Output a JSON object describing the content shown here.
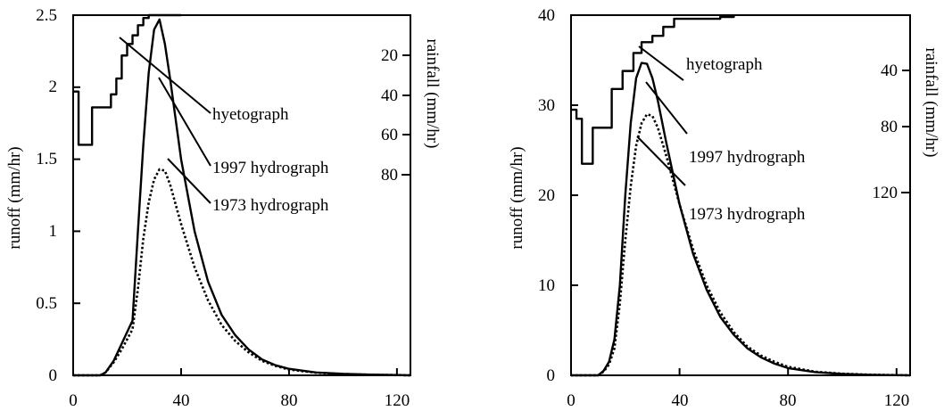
{
  "chart_data": [
    {
      "type": "line",
      "xlim": [
        0,
        125
      ],
      "ylim": [
        0,
        2.5
      ],
      "x_ticks": [
        "0",
        "40",
        "80",
        "120"
      ],
      "y_ticks": [
        "0",
        "0.5",
        "1",
        "1.5",
        "2",
        "2.5"
      ],
      "ylabel": "runoff (mm/hr)",
      "y2label": "rainfall (mm/hr)",
      "y2_ticks": [
        "20",
        "40",
        "60",
        "80"
      ],
      "y2_direction": "inverted, from top",
      "series": [
        {
          "name": "1997 hydrograph",
          "style": "solid",
          "x": [
            0,
            5,
            10,
            12,
            15,
            18,
            20,
            22,
            24,
            26,
            28,
            30,
            32,
            34,
            36,
            40,
            45,
            50,
            55,
            60,
            65,
            70,
            75,
            80,
            90,
            100,
            110,
            120,
            125
          ],
          "y": [
            0,
            0,
            0,
            0.02,
            0.1,
            0.22,
            0.3,
            0.38,
            1.0,
            1.6,
            2.1,
            2.4,
            2.47,
            2.3,
            2.05,
            1.5,
            1.0,
            0.65,
            0.42,
            0.28,
            0.18,
            0.11,
            0.07,
            0.045,
            0.02,
            0.01,
            0.005,
            0.002,
            0
          ]
        },
        {
          "name": "1973 hydrograph",
          "style": "dotted",
          "x": [
            0,
            5,
            10,
            12,
            15,
            18,
            20,
            22,
            24,
            26,
            28,
            30,
            32,
            34,
            36,
            40,
            45,
            50,
            55,
            60,
            65,
            70,
            75,
            80,
            90,
            100,
            110,
            120,
            125
          ],
          "y": [
            0,
            0,
            0,
            0.02,
            0.09,
            0.18,
            0.25,
            0.32,
            0.6,
            0.95,
            1.2,
            1.36,
            1.43,
            1.42,
            1.32,
            1.05,
            0.75,
            0.52,
            0.35,
            0.24,
            0.16,
            0.1,
            0.065,
            0.04,
            0.018,
            0.009,
            0.004,
            0.002,
            0
          ]
        },
        {
          "name": "hyetograph",
          "style": "step",
          "x": [
            0,
            2,
            5,
            7,
            9,
            11,
            14,
            16,
            18,
            20,
            22,
            24,
            26,
            28,
            31,
            34,
            37,
            40
          ],
          "y": [
            1.97,
            1.6,
            1.6,
            1.86,
            1.86,
            1.86,
            1.95,
            2.06,
            2.22,
            2.3,
            2.36,
            2.43,
            2.48,
            2.5,
            2.5,
            2.5,
            2.5,
            2.5
          ]
        }
      ],
      "annotations": [
        "hyetograph",
        "1997 hydrograph",
        "1973 hydrograph"
      ]
    },
    {
      "type": "line",
      "xlim": [
        0,
        125
      ],
      "ylim": [
        0,
        40
      ],
      "x_ticks": [
        "0",
        "40",
        "80",
        "120"
      ],
      "y_ticks": [
        "0",
        "10",
        "20",
        "30",
        "40"
      ],
      "ylabel": "runoff (mm/hr)",
      "y2label": "rainfall (mm/hr)",
      "y2_ticks": [
        "40",
        "80",
        "120"
      ],
      "y2_direction": "inverted, from top",
      "series": [
        {
          "name": "1997 hydrograph",
          "style": "solid",
          "x": [
            0,
            5,
            10,
            12,
            14,
            16,
            18,
            20,
            22,
            24,
            26,
            28,
            30,
            32,
            35,
            40,
            45,
            50,
            55,
            60,
            65,
            70,
            75,
            80,
            90,
            100,
            110,
            120,
            125
          ],
          "y": [
            0,
            0,
            0,
            0.5,
            1.5,
            4,
            10,
            20,
            28,
            33,
            34.7,
            34.6,
            33,
            30.5,
            26,
            19,
            13.5,
            9.5,
            6.5,
            4.5,
            3,
            2,
            1.3,
            0.8,
            0.35,
            0.15,
            0.06,
            0.02,
            0
          ]
        },
        {
          "name": "1973 hydrograph",
          "style": "dotted",
          "x": [
            0,
            5,
            10,
            12,
            14,
            16,
            18,
            20,
            22,
            24,
            26,
            28,
            30,
            32,
            35,
            40,
            45,
            50,
            55,
            60,
            65,
            70,
            75,
            80,
            90,
            100,
            110,
            120,
            125
          ],
          "y": [
            0,
            0,
            0,
            0.4,
            1.2,
            3,
            8,
            15,
            21,
            25.5,
            28,
            29,
            28.8,
            27.5,
            24.5,
            19,
            14,
            10,
            7,
            4.8,
            3.2,
            2.2,
            1.5,
            0.95,
            0.4,
            0.18,
            0.07,
            0.025,
            0
          ]
        },
        {
          "name": "hyetograph",
          "style": "step",
          "x": [
            0,
            2,
            4,
            6,
            8,
            10,
            12,
            15,
            17,
            19,
            21,
            23,
            26,
            30,
            34,
            38,
            45,
            55,
            60
          ],
          "y": [
            29.5,
            28.5,
            23.5,
            23.5,
            27.5,
            27.5,
            27.5,
            31.8,
            31.8,
            33.8,
            33.8,
            35.8,
            37,
            37.7,
            38.7,
            39.6,
            39.6,
            39.8,
            40
          ]
        }
      ],
      "annotations": [
        "hyetograph",
        "1997 hydrograph",
        "1973 hydrograph"
      ]
    }
  ]
}
